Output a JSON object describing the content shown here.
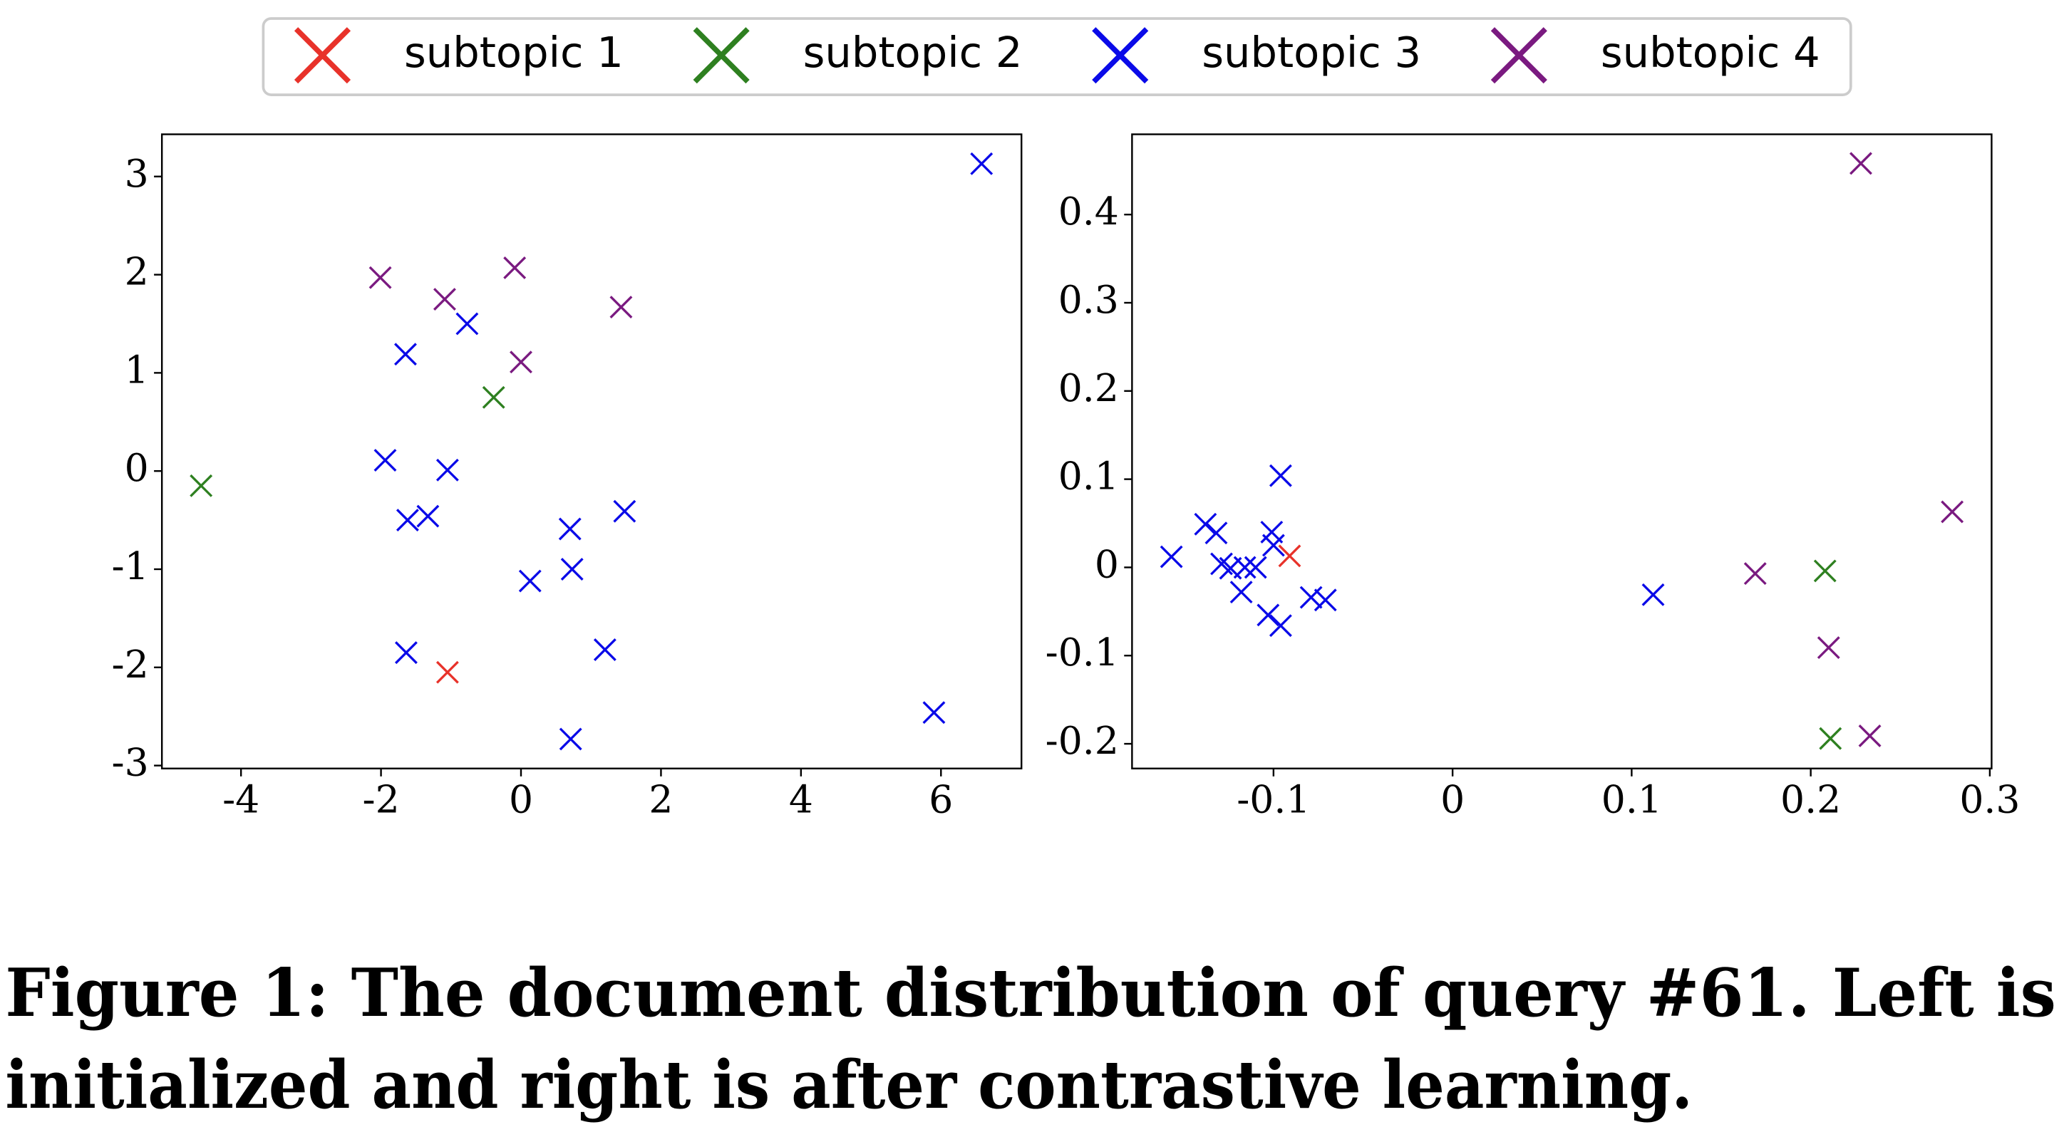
{
  "chart_data": [
    {
      "type": "scatter",
      "xlim": [
        -5.13,
        7.15
      ],
      "ylim": [
        -3.03,
        3.43
      ],
      "xticks": [
        -4,
        -2,
        0,
        2,
        4,
        6
      ],
      "yticks": [
        -3,
        -2,
        -1,
        0,
        1,
        2,
        3
      ],
      "series": [
        {
          "name": "subtopic 1",
          "color": "#e8322a",
          "x": [
            -1.05
          ],
          "values": [
            -2.05
          ]
        },
        {
          "name": "subtopic 2",
          "color": "#2e8020",
          "x": [
            -4.57,
            -0.39
          ],
          "values": [
            -0.15,
            0.75
          ]
        },
        {
          "name": "subtopic 3",
          "color": "#0a0ae8",
          "x": [
            6.58,
            -1.65,
            -0.77,
            -1.94,
            -1.05,
            -1.62,
            -1.33,
            0.7,
            1.48,
            0.13,
            0.73,
            -1.64,
            1.2,
            0.71,
            5.9
          ],
          "values": [
            3.13,
            1.19,
            1.5,
            0.11,
            0.01,
            -0.5,
            -0.46,
            -0.59,
            -0.41,
            -1.12,
            -1.0,
            -1.85,
            -1.82,
            -2.73,
            -2.46
          ]
        },
        {
          "name": "subtopic 4",
          "color": "#7a1a80",
          "x": [
            -2.01,
            -1.09,
            -0.09,
            1.43,
            0.0
          ],
          "values": [
            1.97,
            1.75,
            2.07,
            1.67,
            1.11
          ]
        }
      ]
    },
    {
      "type": "scatter",
      "xlim": [
        -0.179,
        0.301
      ],
      "ylim": [
        -0.228,
        0.491
      ],
      "xticks": [
        -0.1,
        0,
        0.1,
        0.2,
        0.3
      ],
      "yticks": [
        -0.2,
        -0.1,
        0,
        0.1,
        0.2,
        0.3,
        0.4
      ],
      "series": [
        {
          "name": "subtopic 1",
          "color": "#e8322a",
          "x": [
            -0.091
          ],
          "values": [
            0.013
          ]
        },
        {
          "name": "subtopic 2",
          "color": "#2e8020",
          "x": [
            0.208,
            0.211
          ],
          "values": [
            -0.004,
            -0.194
          ]
        },
        {
          "name": "subtopic 3",
          "color": "#0a0ae8",
          "x": [
            -0.157,
            -0.138,
            -0.132,
            -0.129,
            -0.124,
            -0.116,
            -0.11,
            -0.118,
            -0.101,
            -0.1,
            -0.096,
            -0.103,
            -0.096,
            -0.079,
            -0.071,
            0.112
          ],
          "values": [
            0.012,
            0.049,
            0.039,
            0.004,
            -0.001,
            0.0,
            0.0,
            -0.028,
            0.04,
            0.025,
            0.104,
            -0.054,
            -0.066,
            -0.034,
            -0.037,
            -0.031
          ]
        },
        {
          "name": "subtopic 4",
          "color": "#7a1a80",
          "x": [
            0.228,
            0.279,
            0.169,
            0.21,
            0.233
          ],
          "values": [
            0.458,
            0.063,
            -0.007,
            -0.091,
            -0.191
          ]
        }
      ]
    }
  ],
  "caption": [
    "Figure 1: The document distribution of query #61. Left is",
    "initialized and right is after contrastive learning."
  ]
}
